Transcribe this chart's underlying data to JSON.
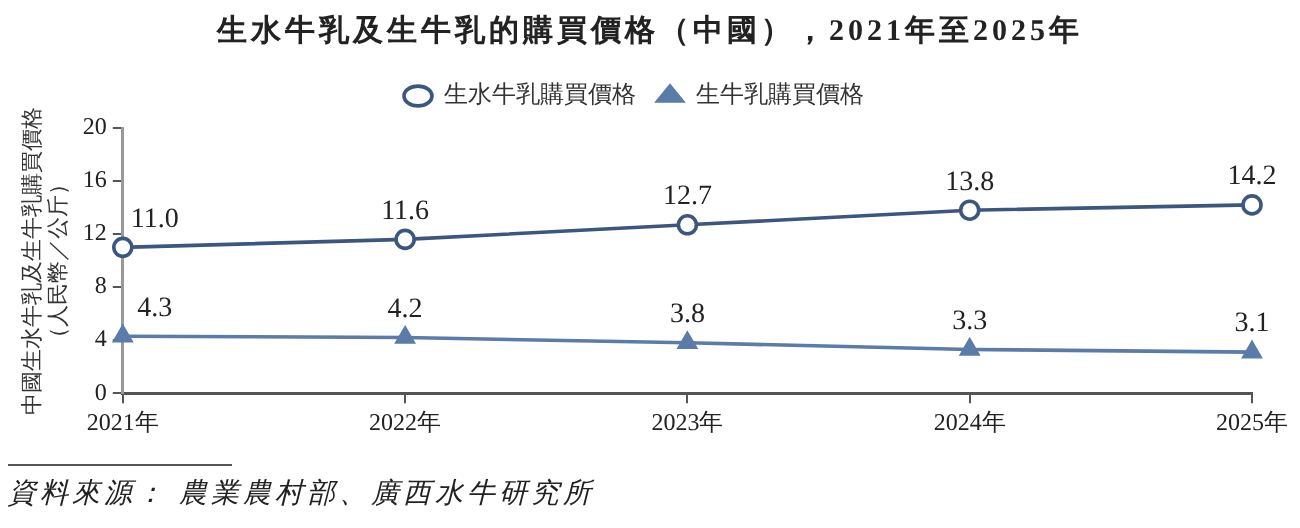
{
  "chart_data": {
    "type": "line",
    "title": "生水牛乳及生牛乳的購買價格（中國），2021年至2025年",
    "ylabel": "中國生水牛乳及生牛乳購買價格（人民幣／公斤）",
    "categories": [
      "2021年",
      "2022年",
      "2023年",
      "2024年",
      "2025年"
    ],
    "series": [
      {
        "name": "生水牛乳購買價格",
        "color": "#3b5780",
        "marker": "circle",
        "values": [
          11.0,
          11.6,
          12.7,
          13.8,
          14.2
        ],
        "value_labels": [
          "11.0",
          "11.6",
          "12.7",
          "13.8",
          "14.2"
        ]
      },
      {
        "name": "生牛乳購買價格",
        "color": "#5b7ba8",
        "marker": "triangle",
        "values": [
          4.3,
          4.2,
          3.8,
          3.3,
          3.1
        ],
        "value_labels": [
          "4.3",
          "4.2",
          "3.8",
          "3.3",
          "3.1"
        ]
      }
    ],
    "ylim": [
      0,
      20
    ],
    "yticks": [
      0,
      4,
      8,
      12,
      16,
      20
    ],
    "grid": false,
    "legend": "top",
    "annotations": [
      "資料來源： 農業農村部、廣西水牛研究所"
    ]
  }
}
